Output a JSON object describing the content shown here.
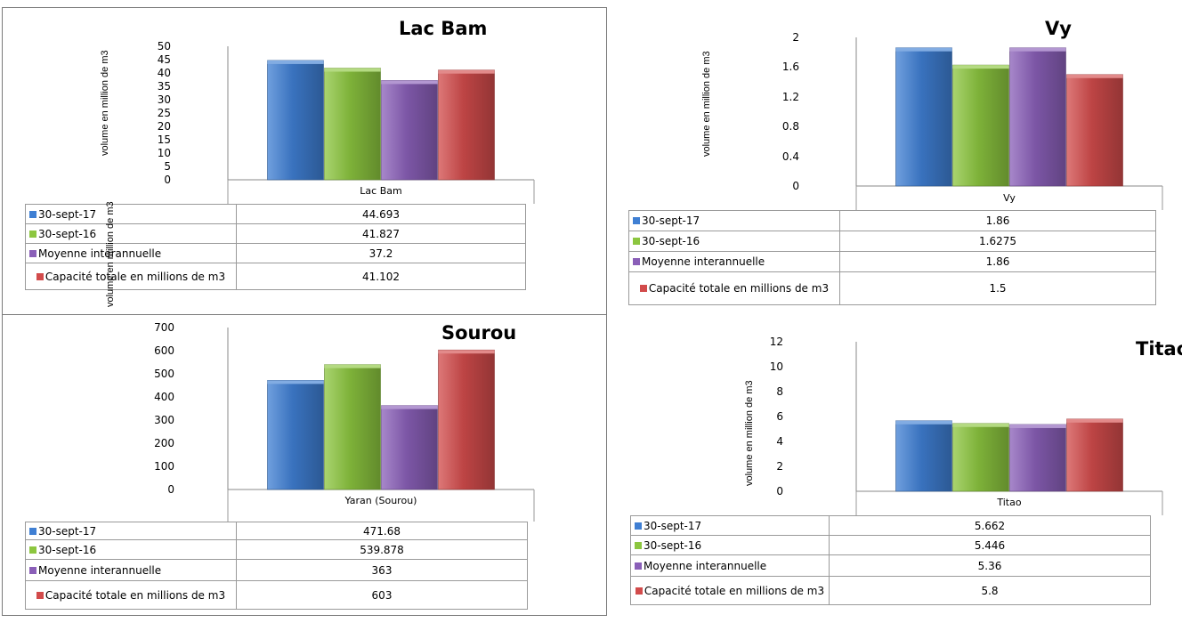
{
  "chart_data": [
    {
      "type": "bar",
      "title": "Lac Bam",
      "ylabel": "volume en million de m3",
      "categories": [
        "Lac Bam"
      ],
      "ylim": [
        0,
        50
      ],
      "yticks": [
        "50",
        "45",
        "40",
        "35",
        "30",
        "25",
        "20",
        "15",
        "10",
        "5",
        "0"
      ],
      "series": [
        {
          "name": "30-sept-17",
          "values": [
            44.693
          ],
          "label": "44.693",
          "color": "#3f7fd3"
        },
        {
          "name": "30-sept-16",
          "values": [
            41.827
          ],
          "label": "41.827",
          "color": "#8cc63f"
        },
        {
          "name": "Moyenne interannuelle",
          "values": [
            37.2
          ],
          "label": "37.2",
          "color": "#8a5fb8"
        },
        {
          "name": "Capacité totale en millions de m3",
          "values": [
            41.102
          ],
          "label": "41.102",
          "color": "#d24b4b"
        }
      ]
    },
    {
      "type": "bar",
      "title": "Vy",
      "ylabel": "volume en million de m3",
      "categories": [
        "Vy"
      ],
      "ylim": [
        0,
        2
      ],
      "yticks": [
        "2",
        "1.6",
        "1.2",
        "0.8",
        "0.4",
        "0"
      ],
      "series": [
        {
          "name": "30-sept-17",
          "values": [
            1.86
          ],
          "label": "1.86",
          "color": "#3f7fd3"
        },
        {
          "name": "30-sept-16",
          "values": [
            1.6275
          ],
          "label": "1.6275",
          "color": "#8cc63f"
        },
        {
          "name": "Moyenne interannuelle",
          "values": [
            1.86
          ],
          "label": "1.86",
          "color": "#8a5fb8"
        },
        {
          "name": "Capacité totale en millions de m3",
          "values": [
            1.5
          ],
          "label": "1.5",
          "color": "#d24b4b"
        }
      ]
    },
    {
      "type": "bar",
      "title": "Sourou",
      "ylabel": "volume en million de m3",
      "categories": [
        "Yaran (Sourou)"
      ],
      "ylim": [
        0,
        700
      ],
      "yticks": [
        "700",
        "600",
        "500",
        "400",
        "300",
        "200",
        "100",
        "0"
      ],
      "series": [
        {
          "name": "30-sept-17",
          "values": [
            471.68
          ],
          "label": "471.68",
          "color": "#3f7fd3"
        },
        {
          "name": "30-sept-16",
          "values": [
            539.878
          ],
          "label": "539.878",
          "color": "#8cc63f"
        },
        {
          "name": "Moyenne interannuelle",
          "values": [
            363
          ],
          "label": "363",
          "color": "#8a5fb8"
        },
        {
          "name": "Capacité totale en millions de m3",
          "values": [
            603
          ],
          "label": "603",
          "color": "#d24b4b"
        }
      ]
    },
    {
      "type": "bar",
      "title": "Titao",
      "ylabel": "volume en million de m3",
      "categories": [
        "Titao"
      ],
      "ylim": [
        0,
        12
      ],
      "yticks": [
        "12",
        "10",
        "8",
        "6",
        "4",
        "2",
        "0"
      ],
      "series": [
        {
          "name": "30-sept-17",
          "values": [
            5.662
          ],
          "label": "5.662",
          "color": "#3f7fd3"
        },
        {
          "name": "30-sept-16",
          "values": [
            5.446
          ],
          "label": "5.446",
          "color": "#8cc63f"
        },
        {
          "name": "Moyenne interannuelle",
          "values": [
            5.36
          ],
          "label": "5.36",
          "color": "#8a5fb8"
        },
        {
          "name": "Capacité totale en millions de m3",
          "values": [
            5.8
          ],
          "label": "5.8",
          "color": "#d24b4b"
        }
      ]
    }
  ]
}
